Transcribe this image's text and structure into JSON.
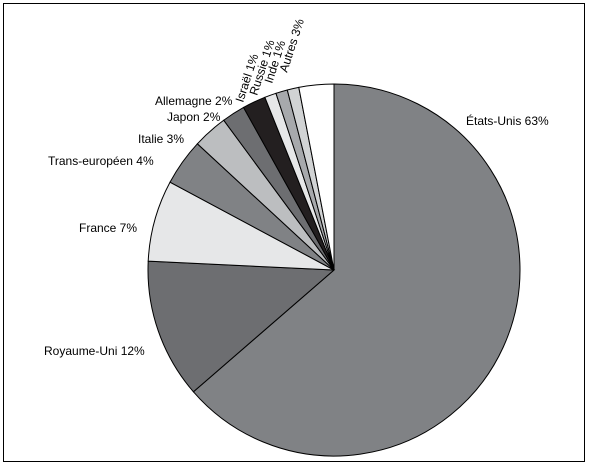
{
  "chart_data": {
    "type": "pie",
    "title": "",
    "start": "top",
    "direction": "clockwise",
    "slices": [
      {
        "label": "États-Unis 63%",
        "name": "États-Unis",
        "value": 63,
        "color": "#808285"
      },
      {
        "label": "Royaume-Uni 12%",
        "name": "Royaume-Uni",
        "value": 12,
        "color": "#6d6e71"
      },
      {
        "label": "France 7%",
        "name": "France",
        "value": 7,
        "color": "#e6e7e8"
      },
      {
        "label": "Trans-européen 4%",
        "name": "Trans-européen",
        "value": 4,
        "color": "#808285"
      },
      {
        "label": "Italie 3%",
        "name": "Italie",
        "value": 3,
        "color": "#bcbec0"
      },
      {
        "label": "Japon 2%",
        "name": "Japon",
        "value": 2,
        "color": "#6d6e71"
      },
      {
        "label": "Allemagne 2%",
        "name": "Allemagne",
        "value": 2,
        "color": "#231f20"
      },
      {
        "label": "Israël 1%",
        "name": "Israël",
        "value": 1,
        "color": "#e6e7e8"
      },
      {
        "label": "Russie 1%",
        "name": "Russie",
        "value": 1,
        "color": "#a7a9ac"
      },
      {
        "label": "Inde 1%",
        "name": "Inde",
        "value": 1,
        "color": "#d1d3d4"
      },
      {
        "label": "Autres 3%",
        "name": "Autres",
        "value": 3,
        "color": "#ffffff"
      }
    ]
  }
}
